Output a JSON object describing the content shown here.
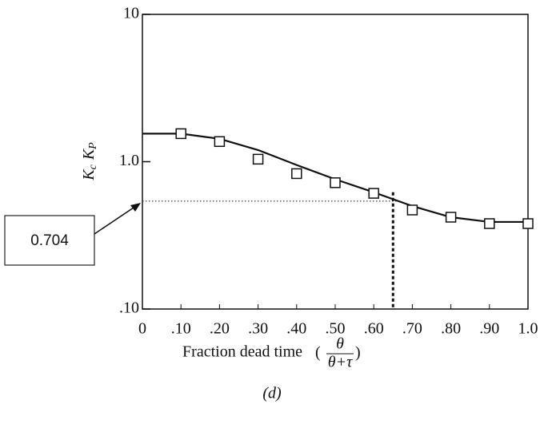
{
  "chart_data": {
    "type": "line",
    "xlabel": "Fraction dead time",
    "xlabel_fraction": {
      "numerator": "θ",
      "denominator": "θ+τ"
    },
    "ylabel": [
      "K",
      "c",
      "K",
      "P"
    ],
    "caption": "(d)",
    "log_y": true,
    "xlim": [
      0,
      1
    ],
    "ylim": [
      0.1,
      10
    ],
    "xticks": [
      0,
      {
        "value": 0.1,
        "label": ".10"
      },
      {
        "value": 0.2,
        "label": ".20"
      },
      {
        "value": 0.3,
        "label": ".30"
      },
      {
        "value": 0.4,
        "label": ".40"
      },
      {
        "value": 0.5,
        "label": ".50"
      },
      {
        "value": 0.6,
        "label": ".60"
      },
      {
        "value": 0.7,
        "label": ".70"
      },
      {
        "value": 0.8,
        "label": ".80"
      },
      {
        "value": 0.9,
        "label": ".90"
      },
      {
        "value": 1,
        "label": "1.0"
      }
    ],
    "yticks": [
      {
        "value": 0.1,
        "label": ".10"
      },
      {
        "value": 1,
        "label": "1.0"
      },
      10
    ],
    "series": [
      {
        "type": "line",
        "color": "#111111",
        "x": [
          0,
          0.1,
          0.2,
          0.3,
          0.4,
          0.5,
          0.6,
          0.7,
          0.8,
          0.9,
          1.0
        ],
        "values": [
          1.55,
          1.55,
          1.43,
          1.2,
          0.95,
          0.76,
          0.62,
          0.5,
          0.42,
          0.39,
          0.39
        ]
      },
      {
        "type": "scatter",
        "color": "#111111",
        "x": [
          0.1,
          0.2,
          0.3,
          0.4,
          0.5,
          0.6,
          0.7,
          0.8,
          0.9,
          1.0
        ],
        "values": [
          1.55,
          1.37,
          1.04,
          0.83,
          0.72,
          0.61,
          0.47,
          0.42,
          0.38,
          0.38
        ]
      }
    ],
    "reference_lines": {
      "y": 0.54,
      "x": 0.65
    },
    "annotation": "0.704"
  }
}
